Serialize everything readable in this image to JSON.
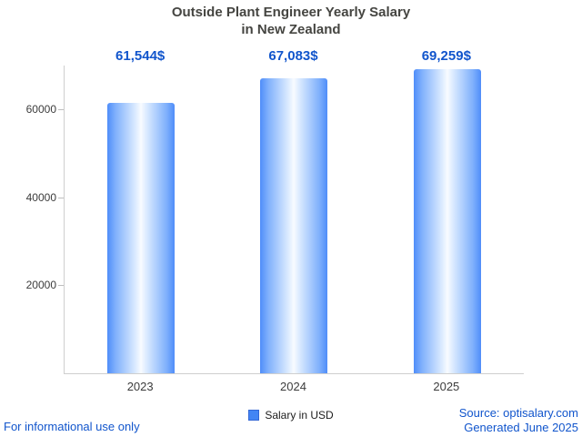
{
  "title": {
    "line1": "Outside Plant Engineer Yearly Salary",
    "line2": "in New Zealand"
  },
  "chart_data": {
    "type": "bar",
    "title": "Outside Plant Engineer Yearly Salary in New Zealand",
    "categories": [
      "2023",
      "2024",
      "2025"
    ],
    "values": [
      61544,
      67083,
      69259
    ],
    "value_labels": [
      "61,544$",
      "67,083$",
      "69,259$"
    ],
    "series": [
      {
        "name": "Salary in USD",
        "values": [
          61544,
          67083,
          69259
        ]
      }
    ],
    "xlabel": "",
    "ylabel": "",
    "ylim": [
      0,
      70000
    ],
    "yticks": [
      20000,
      40000,
      60000
    ],
    "grid": false,
    "legend_position": "bottom",
    "bar_color_edge": "#4f8df9",
    "bar_color_center": "#f8fbff",
    "value_label_color": "#1155cc"
  },
  "legend": {
    "label": "Salary in USD",
    "swatch_color": "#4285f4"
  },
  "footer": {
    "left": "For informational use only",
    "source": "Source: optisalary.com",
    "generated": "Generated June 2025"
  }
}
